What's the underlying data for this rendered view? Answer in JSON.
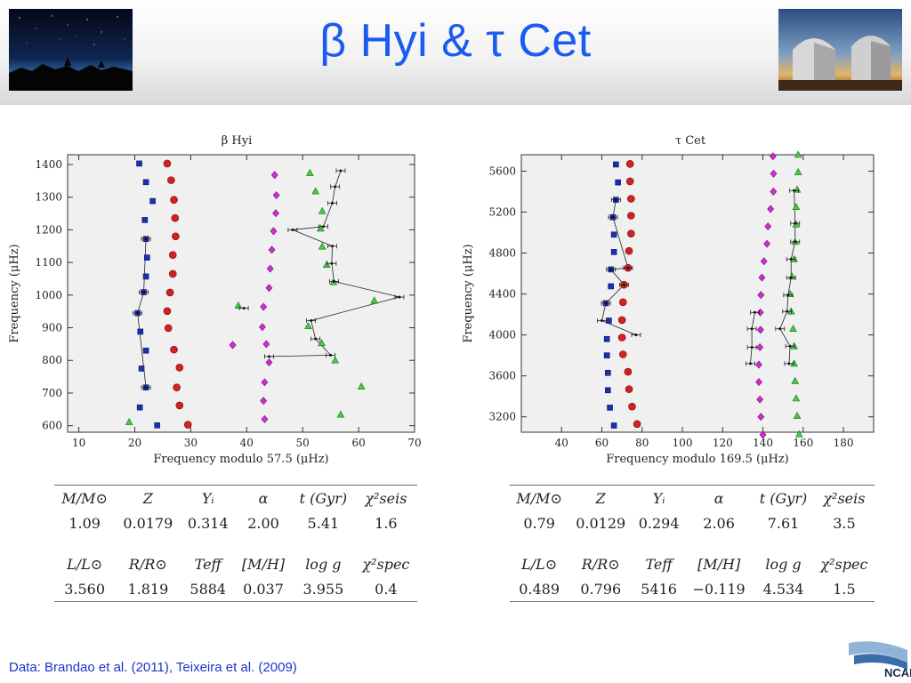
{
  "slide": {
    "title": "β Hyi & τ Cet",
    "footer": "Data: Brandao et al. (2011), Teixeira et al. (2009)",
    "logo_text": "NCAR"
  },
  "photos": {
    "left": "night-sky-photo",
    "right": "observatory-domes-photo"
  },
  "colors": {
    "title": "#1a5cf0",
    "l0": "#1a2fb8",
    "l1": "#d42020",
    "l2": "#d62ad6",
    "l3": "#3fcf3f",
    "footer": "#1a35c9"
  },
  "chart_data": [
    {
      "type": "scatter",
      "title": "β Hyi",
      "xlabel": "Frequency modulo 57.5 (μHz)",
      "ylabel": "Frequency (μHz)",
      "xlim": [
        8,
        70
      ],
      "ylim": [
        580,
        1430
      ],
      "xticks": [
        10,
        20,
        30,
        40,
        50,
        60,
        70
      ],
      "yticks": [
        600,
        700,
        800,
        900,
        1000,
        1100,
        1200,
        1300,
        1400
      ],
      "series": [
        {
          "marker": "square",
          "points": [
            [
              20.8,
              1403
            ],
            [
              22,
              1346
            ],
            [
              23.2,
              1288
            ],
            [
              21.8,
              1230
            ],
            [
              22,
              1172
            ],
            [
              22.2,
              1115
            ],
            [
              22,
              1057
            ],
            [
              21.6,
              1009
            ],
            [
              20.5,
              945
            ],
            [
              21,
              888
            ],
            [
              22,
              830
            ],
            [
              21.2,
              775
            ],
            [
              22,
              717
            ],
            [
              20.9,
              656
            ],
            [
              24,
              601
            ]
          ]
        },
        {
          "marker": "circle",
          "points": [
            [
              25.8,
              1403
            ],
            [
              26.5,
              1352
            ],
            [
              27,
              1292
            ],
            [
              27.2,
              1236
            ],
            [
              27.3,
              1180
            ],
            [
              26.8,
              1123
            ],
            [
              26.8,
              1065
            ],
            [
              26.3,
              1008
            ],
            [
              25.8,
              951
            ],
            [
              26,
              899
            ],
            [
              27,
              833
            ],
            [
              28,
              778
            ],
            [
              27.5,
              717
            ],
            [
              28,
              662
            ],
            [
              29.5,
              603
            ]
          ]
        },
        {
          "marker": "diamond",
          "points": [
            [
              45,
              1368
            ],
            [
              45.3,
              1306
            ],
            [
              45.2,
              1251
            ],
            [
              44.8,
              1196
            ],
            [
              44.5,
              1139
            ],
            [
              44.2,
              1081
            ],
            [
              44,
              1022
            ],
            [
              43,
              964
            ],
            [
              42.8,
              902
            ],
            [
              43.5,
              850
            ],
            [
              37.5,
              847
            ],
            [
              44,
              794
            ],
            [
              43.2,
              733
            ],
            [
              43,
              676
            ],
            [
              43.2,
              620
            ]
          ]
        },
        {
          "marker": "triangle",
          "points": [
            [
              51.3,
              1374
            ],
            [
              52.3,
              1318
            ],
            [
              53.5,
              1257
            ],
            [
              53.2,
              1204
            ],
            [
              53.5,
              1149
            ],
            [
              54.3,
              1093
            ],
            [
              55.5,
              1040
            ],
            [
              38.5,
              968
            ],
            [
              62.8,
              983
            ],
            [
              51,
              905
            ],
            [
              53.4,
              853
            ],
            [
              55.8,
              800
            ],
            [
              60.5,
              720
            ],
            [
              56.8,
              634
            ],
            [
              19,
              611
            ]
          ]
        },
        {
          "marker": "star",
          "points": [
            [
              22,
              1172
            ],
            [
              21.6,
              1009
            ],
            [
              20.5,
              945
            ],
            [
              22,
              717
            ],
            [
              56.8,
              1381
            ],
            [
              55.8,
              1332
            ],
            [
              55.3,
              1282
            ],
            [
              53.7,
              1210
            ],
            [
              55.3,
              1150
            ],
            [
              55.2,
              1097
            ],
            [
              55.6,
              1042
            ],
            [
              67.3,
              994
            ],
            [
              39.5,
              960
            ],
            [
              51.5,
              922
            ],
            [
              52.3,
              866
            ],
            [
              55,
              816
            ],
            [
              48.2,
              1200
            ],
            [
              44,
              812
            ]
          ]
        }
      ]
    },
    {
      "type": "scatter",
      "title": "τ Cet",
      "xlabel": "Frequency modulo 169.5 (μHz)",
      "ylabel": "Frequency (μHz)",
      "xlim": [
        20,
        195
      ],
      "ylim": [
        3050,
        5760
      ],
      "xticks": [
        40,
        60,
        80,
        100,
        120,
        140,
        160,
        180
      ],
      "yticks": [
        3200,
        3600,
        4000,
        4400,
        4800,
        5200,
        5600
      ],
      "series": [
        {
          "marker": "square",
          "points": [
            [
              67,
              5665
            ],
            [
              68,
              5490
            ],
            [
              67,
              5320
            ],
            [
              65.5,
              5150
            ],
            [
              66,
              4980
            ],
            [
              66,
              4810
            ],
            [
              64.5,
              4640
            ],
            [
              64.5,
              4475
            ],
            [
              62,
              4310
            ],
            [
              63.5,
              4140
            ],
            [
              62.5,
              3960
            ],
            [
              62.5,
              3800
            ],
            [
              63,
              3630
            ],
            [
              63,
              3460
            ],
            [
              64,
              3290
            ],
            [
              66,
              3115
            ]
          ]
        },
        {
          "marker": "circle",
          "points": [
            [
              74,
              5670
            ],
            [
              74,
              5500
            ],
            [
              74.5,
              5330
            ],
            [
              74.5,
              5165
            ],
            [
              74.5,
              4990
            ],
            [
              73.5,
              4820
            ],
            [
              73,
              4655
            ],
            [
              71,
              4490
            ],
            [
              70.5,
              4320
            ],
            [
              70,
              4145
            ],
            [
              70,
              3975
            ],
            [
              70.5,
              3810
            ],
            [
              73,
              3640
            ],
            [
              73.5,
              3470
            ],
            [
              75,
              3300
            ],
            [
              77.5,
              3130
            ]
          ]
        },
        {
          "marker": "diamond",
          "points": [
            [
              145,
              5745
            ],
            [
              145.3,
              5575
            ],
            [
              145.2,
              5400
            ],
            [
              143.8,
              5230
            ],
            [
              142.5,
              5060
            ],
            [
              142,
              4890
            ],
            [
              140.5,
              4720
            ],
            [
              139.5,
              4560
            ],
            [
              139,
              4390
            ],
            [
              138.7,
              4220
            ],
            [
              138.8,
              4050
            ],
            [
              138.5,
              3880
            ],
            [
              138,
              3710
            ],
            [
              138,
              3540
            ],
            [
              138.5,
              3370
            ],
            [
              139,
              3200
            ],
            [
              140,
              3025
            ]
          ]
        },
        {
          "marker": "triangle",
          "points": [
            [
              157.5,
              5760
            ],
            [
              157.5,
              5590
            ],
            [
              157,
              5420
            ],
            [
              156.5,
              5250
            ],
            [
              156.5,
              5080
            ],
            [
              156,
              4910
            ],
            [
              155.5,
              4740
            ],
            [
              154.5,
              4570
            ],
            [
              153.5,
              4400
            ],
            [
              154,
              4230
            ],
            [
              155,
              4060
            ],
            [
              155.5,
              3890
            ],
            [
              155.5,
              3720
            ],
            [
              156,
              3550
            ],
            [
              156.5,
              3380
            ],
            [
              157,
              3210
            ],
            [
              158,
              3030
            ]
          ]
        },
        {
          "marker": "star",
          "points": [
            [
              67,
              5320
            ],
            [
              65.5,
              5150
            ],
            [
              64.5,
              4640
            ],
            [
              62,
              4310
            ],
            [
              60,
              4140
            ],
            [
              71,
              4490
            ],
            [
              73,
              4655
            ],
            [
              77,
              4000
            ],
            [
              155.5,
              5410
            ],
            [
              156,
              5090
            ],
            [
              156,
              4910
            ],
            [
              154,
              4740
            ],
            [
              154,
              4560
            ],
            [
              152.5,
              4390
            ],
            [
              152,
              4230
            ],
            [
              148.5,
              4060
            ],
            [
              153.5,
              3890
            ],
            [
              153,
              3720
            ],
            [
              133.8,
              3720
            ],
            [
              134.5,
              3880
            ],
            [
              134.5,
              4060
            ],
            [
              136,
              4220
            ]
          ]
        }
      ]
    }
  ],
  "tables": {
    "left": {
      "header1": [
        "M/M⊙",
        "Z",
        "Yᵢ",
        "α",
        "t (Gyr)",
        "χ²seis"
      ],
      "row1": [
        "1.09",
        "0.0179",
        "0.314",
        "2.00",
        "5.41",
        "1.6"
      ],
      "header2": [
        "L/L⊙",
        "R/R⊙",
        "Teff",
        "[M/H]",
        "log g",
        "χ²spec"
      ],
      "row2": [
        "3.560",
        "1.819",
        "5884",
        "0.037",
        "3.955",
        "0.4"
      ]
    },
    "right": {
      "header1": [
        "M/M⊙",
        "Z",
        "Yᵢ",
        "α",
        "t (Gyr)",
        "χ²seis"
      ],
      "row1": [
        "0.79",
        "0.0129",
        "0.294",
        "2.06",
        "7.61",
        "3.5"
      ],
      "header2": [
        "L/L⊙",
        "R/R⊙",
        "Teff",
        "[M/H]",
        "log g",
        "χ²spec"
      ],
      "row2": [
        "0.489",
        "0.796",
        "5416",
        "−0.119",
        "4.534",
        "1.5"
      ]
    }
  }
}
